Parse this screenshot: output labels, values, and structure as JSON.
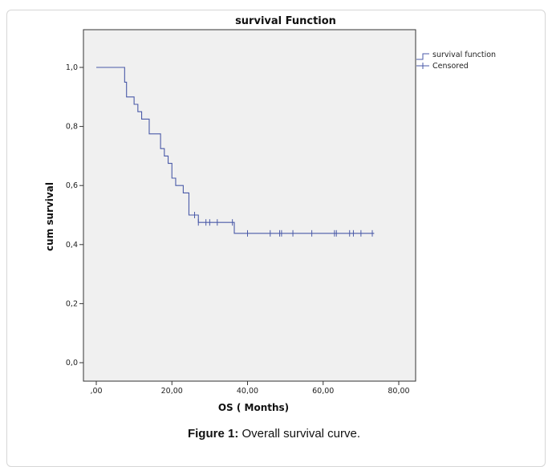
{
  "caption": {
    "label": "Figure 1:",
    "text": " Overall survival curve."
  },
  "chart_data": {
    "type": "line",
    "title": "survival Function",
    "xlabel": "OS ( Months)",
    "ylabel": "cum survival",
    "xlim": [
      0,
      80
    ],
    "ylim": [
      0,
      1
    ],
    "xticks": [
      0,
      20,
      40,
      60,
      80
    ],
    "xtick_labels": [
      ",00",
      "20,00",
      "40,00",
      "60,00",
      "80,00"
    ],
    "yticks": [
      0,
      0.2,
      0.4,
      0.6,
      0.8,
      1.0
    ],
    "ytick_labels": [
      "0,0",
      "0,2",
      "0,4",
      "0,6",
      "0,8",
      "1,0"
    ],
    "grid": false,
    "legend_position": "top-right",
    "series": [
      {
        "name": "survival function",
        "kind": "step",
        "color": "#4a5aa8",
        "x": [
          0,
          7.5,
          8,
          10,
          11,
          12,
          14,
          17,
          18,
          19,
          20,
          21,
          23,
          24.5,
          26,
          27,
          36.5,
          73.5
        ],
        "y": [
          1.0,
          0.95,
          0.9,
          0.875,
          0.85,
          0.825,
          0.775,
          0.725,
          0.7,
          0.675,
          0.625,
          0.6,
          0.575,
          0.5,
          0.5,
          0.475,
          0.438,
          0.438
        ]
      },
      {
        "name": "Censored",
        "kind": "censor-marks",
        "color": "#4a5aa8",
        "x": [
          26,
          27,
          29,
          30,
          32,
          36,
          40,
          46,
          48.5,
          49,
          52,
          57,
          63,
          63.5,
          67,
          68,
          70,
          73
        ],
        "y": [
          0.5,
          0.475,
          0.475,
          0.475,
          0.475,
          0.475,
          0.438,
          0.438,
          0.438,
          0.438,
          0.438,
          0.438,
          0.438,
          0.438,
          0.438,
          0.438,
          0.438,
          0.438
        ]
      }
    ]
  }
}
